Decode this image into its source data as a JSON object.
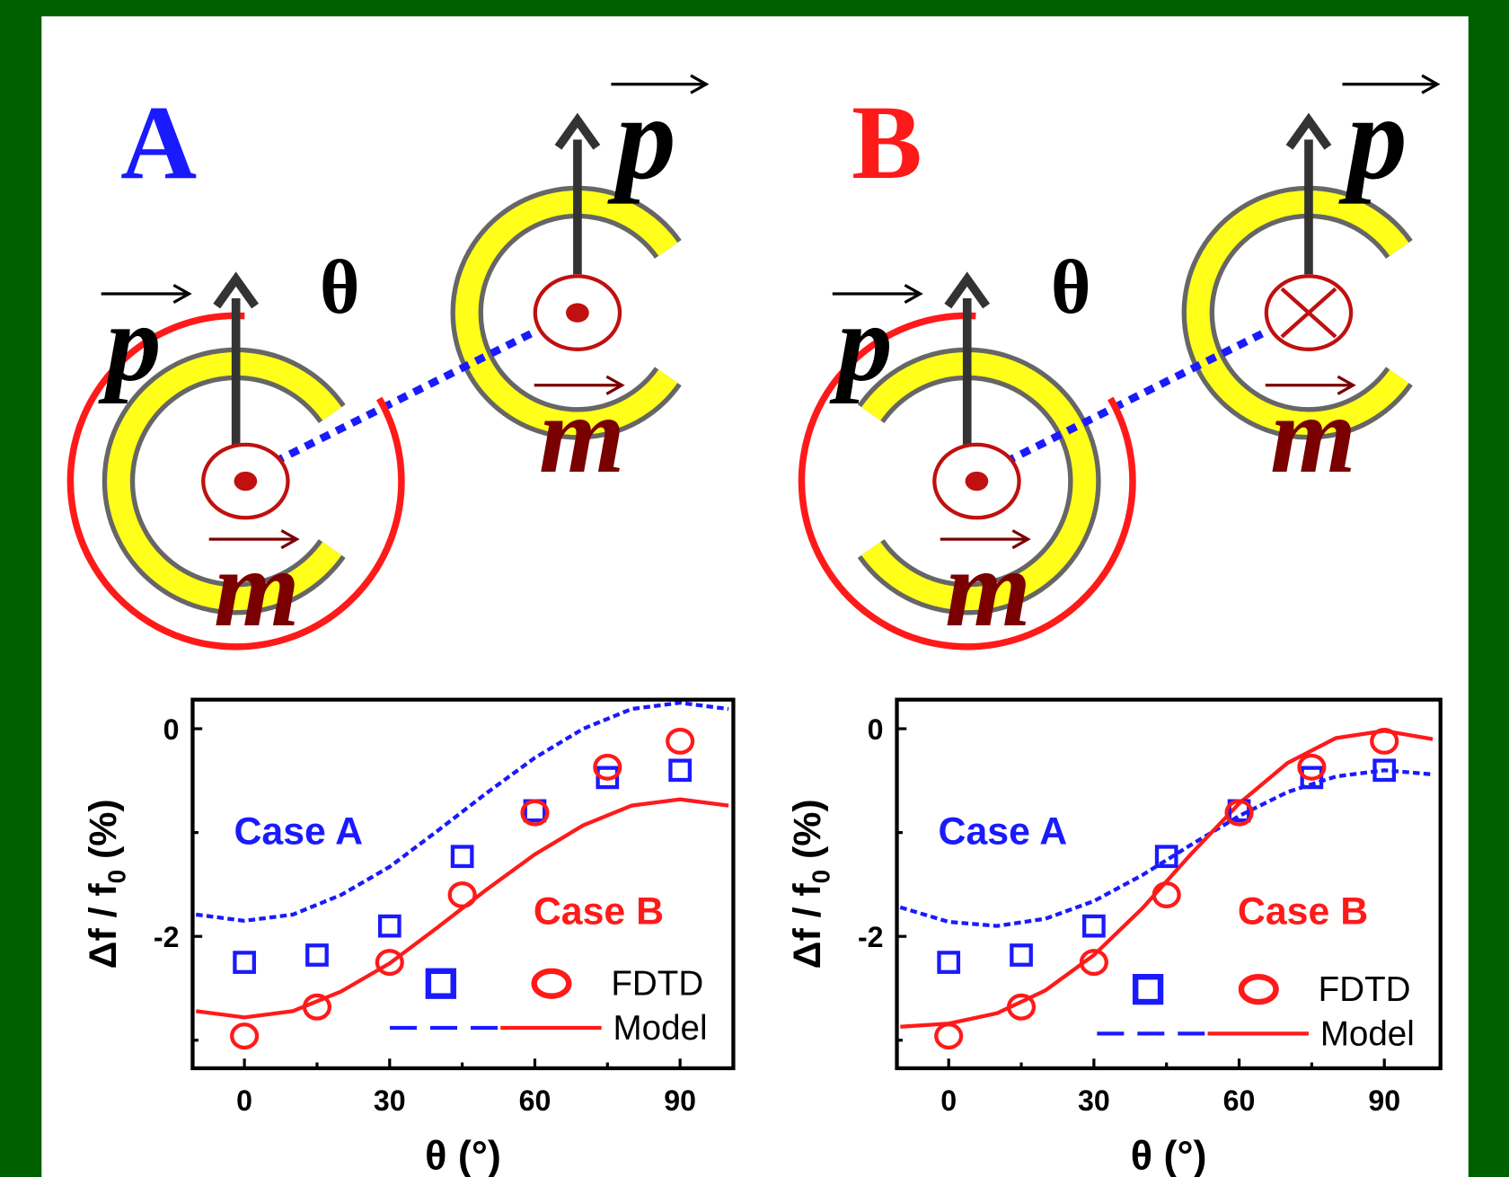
{
  "panels": [
    {
      "label": "A",
      "label_color": "#1a1aff",
      "vector_p": "p",
      "vector_m": "m",
      "angle": "θ"
    },
    {
      "label": "B",
      "label_color": "#ff1a1a",
      "vector_p": "p",
      "vector_m": "m",
      "angle": "θ"
    }
  ],
  "chart_data": [
    {
      "type": "scatter-line",
      "xlabel": "θ (°)",
      "ylabel": {
        "text": "Δf / f",
        "sub": "0",
        "suffix": " (%)"
      },
      "x": [
        0,
        15,
        30,
        45,
        60,
        75,
        90
      ],
      "model_x": [
        -10,
        0,
        10,
        20,
        30,
        40,
        50,
        60,
        70,
        80,
        90,
        100
      ],
      "series": [
        {
          "name": "Case A",
          "color": "#1a1aff",
          "marker": "square",
          "values": [
            -2.25,
            -2.18,
            -1.9,
            -1.23,
            -0.79,
            -0.47,
            -0.4
          ],
          "model_values": [
            -1.79,
            -1.85,
            -1.79,
            -1.6,
            -1.33,
            -0.98,
            -0.62,
            -0.28,
            0.0,
            0.19,
            0.25,
            0.19
          ]
        },
        {
          "name": "Case B",
          "color": "#ff1a1a",
          "marker": "circle",
          "values": [
            -2.96,
            -2.68,
            -2.25,
            -1.6,
            -0.81,
            -0.37,
            -0.12
          ],
          "model_values": [
            -2.72,
            -2.78,
            -2.72,
            -2.53,
            -2.26,
            -1.91,
            -1.55,
            -1.21,
            -0.93,
            -0.74,
            -0.68,
            -0.74
          ]
        }
      ],
      "legend": [
        "FDTD",
        "Model"
      ],
      "xlim": [
        -10.7,
        101
      ],
      "ylim": [
        -3.27,
        0.28
      ],
      "xticks": [
        0,
        30,
        60,
        90
      ],
      "xminorticks": [
        15,
        45,
        75
      ],
      "yticks": [
        -2,
        0
      ],
      "yminorticks": [
        -3,
        -1
      ]
    },
    {
      "type": "scatter-line",
      "xlabel": "θ (°)",
      "ylabel": {
        "text": "Δf / f",
        "sub": "0",
        "suffix": " (%)"
      },
      "x": [
        0,
        15,
        30,
        45,
        60,
        75,
        90
      ],
      "model_x": [
        -10,
        0,
        10,
        20,
        30,
        40,
        50,
        60,
        70,
        80,
        90,
        100
      ],
      "series": [
        {
          "name": "Case A",
          "color": "#1a1aff",
          "marker": "square",
          "values": [
            -2.25,
            -2.18,
            -1.9,
            -1.23,
            -0.79,
            -0.47,
            -0.4
          ],
          "model_values": [
            -1.72,
            -1.86,
            -1.9,
            -1.83,
            -1.66,
            -1.41,
            -1.12,
            -0.84,
            -0.61,
            -0.46,
            -0.4,
            -0.44
          ]
        },
        {
          "name": "Case B",
          "color": "#ff1a1a",
          "marker": "circle",
          "values": [
            -2.96,
            -2.68,
            -2.25,
            -1.6,
            -0.81,
            -0.37,
            -0.12
          ],
          "model_values": [
            -2.87,
            -2.84,
            -2.74,
            -2.52,
            -2.18,
            -1.73,
            -1.21,
            -0.72,
            -0.33,
            -0.09,
            -0.02,
            -0.1
          ]
        }
      ],
      "legend": [
        "FDTD",
        "Model"
      ],
      "xlim": [
        -10.7,
        101.6
      ],
      "ylim": [
        -3.27,
        0.28
      ],
      "xticks": [
        0,
        30,
        60,
        90
      ],
      "xminorticks": [
        15,
        45,
        75
      ],
      "yticks": [
        -2,
        0
      ],
      "yminorticks": [
        -3,
        -1
      ]
    }
  ]
}
